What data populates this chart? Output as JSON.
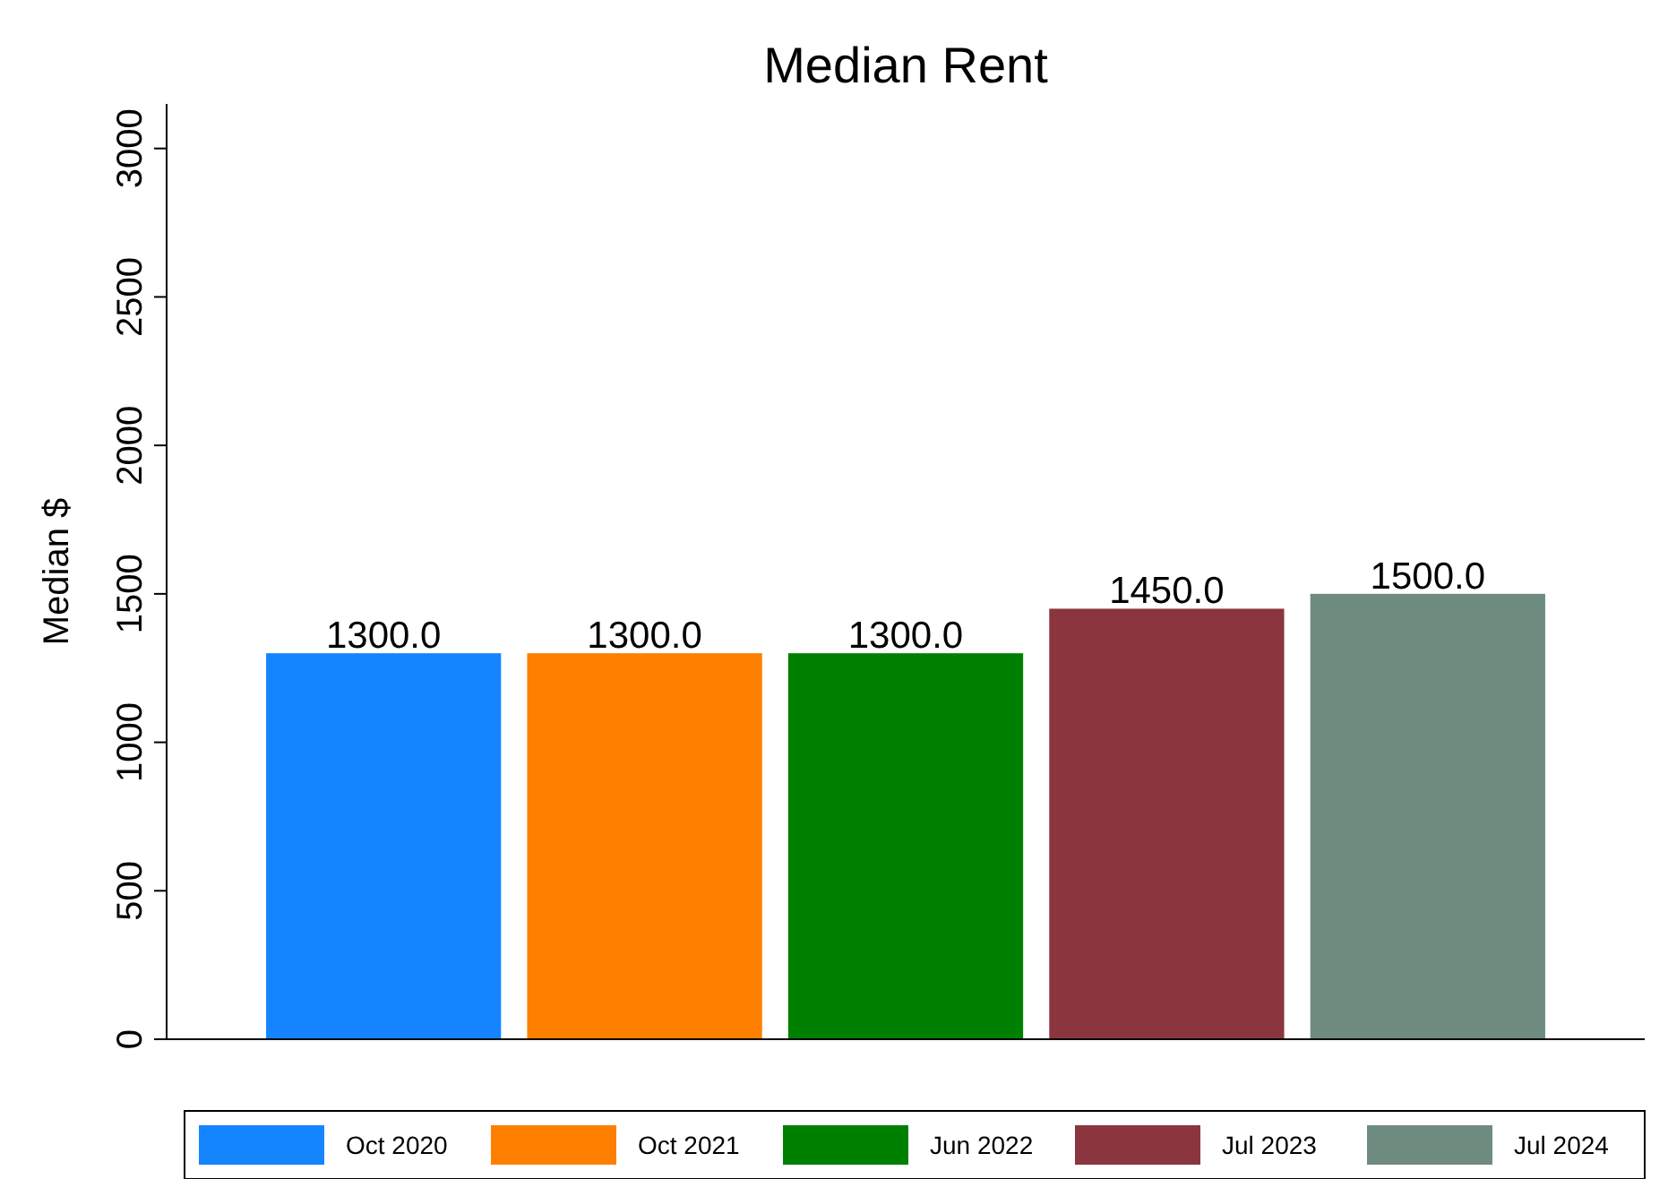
{
  "chart_data": {
    "type": "bar",
    "title": "Median Rent",
    "ylabel": "Median $",
    "categories": [
      null
    ],
    "series": [
      {
        "name": "Oct 2020",
        "color": "#1585ff",
        "values": [
          1300
        ],
        "value_labels": [
          "1300.0"
        ]
      },
      {
        "name": "Oct 2021",
        "color": "#ff7f00",
        "values": [
          1300
        ],
        "value_labels": [
          "1300.0"
        ]
      },
      {
        "name": "Jun 2022",
        "color": "#008000",
        "values": [
          1300
        ],
        "value_labels": [
          "1300.0"
        ]
      },
      {
        "name": "Jul 2023",
        "color": "#8b353f",
        "values": [
          1450
        ],
        "value_labels": [
          "1450.0"
        ]
      },
      {
        "name": "Jul 2024",
        "color": "#6e8c80",
        "values": [
          1500
        ],
        "value_labels": [
          "1500.0"
        ]
      }
    ],
    "ylim": [
      0,
      3150
    ],
    "yticks": [
      0,
      500,
      1000,
      1500,
      2000,
      2500,
      3000
    ],
    "grid": false,
    "legend": "bottom"
  }
}
